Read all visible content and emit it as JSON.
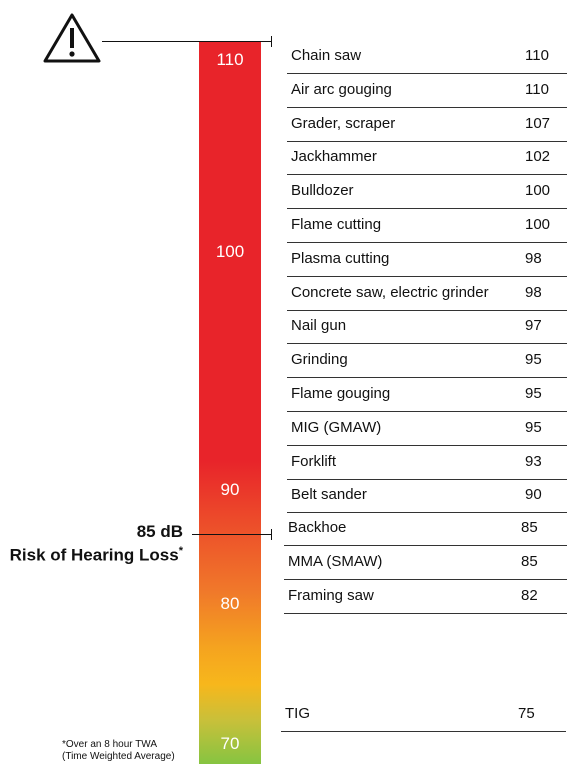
{
  "chart_data": {
    "type": "bar",
    "ylim": [
      70,
      110
    ],
    "scale_ticks": [
      "110",
      "100",
      "90",
      "80",
      "70"
    ],
    "threshold": {
      "db_label": "85 dB",
      "label": "Risk of Hearing Loss",
      "marker": "*"
    },
    "footnote": {
      "line1": "*Over an 8 hour TWA",
      "line2": "(Time Weighted Average)"
    },
    "categories": [
      "Chain saw",
      "Air arc gouging",
      "Grader, scraper",
      "Jackhammer",
      "Bulldozer",
      "Flame cutting",
      "Plasma cutting",
      "Concrete saw, electric grinder",
      "Nail gun",
      "Grinding",
      "Flame gouging",
      "MIG (GMAW)",
      "Forklift",
      "Belt sander",
      "Backhoe",
      "MMA (SMAW)",
      "Framing saw",
      "TIG"
    ],
    "values": [
      110,
      110,
      107,
      102,
      100,
      100,
      98,
      98,
      97,
      95,
      95,
      95,
      93,
      90,
      85,
      85,
      82,
      75
    ],
    "value_labels": [
      "110",
      "110",
      "107",
      "102",
      "100",
      "100",
      "98",
      "98",
      "97",
      "95",
      "95",
      "95",
      "93",
      "90",
      "85",
      "85",
      "82",
      "75"
    ]
  },
  "colors": {
    "scale_top": "#e8242a",
    "scale_mid": "#f7b71c",
    "scale_bottom": "#86c441",
    "text": "#111111"
  }
}
